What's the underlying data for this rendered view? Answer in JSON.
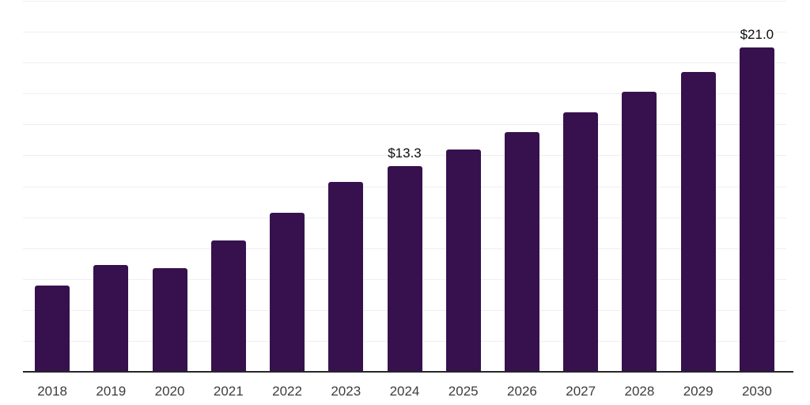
{
  "chart_data": {
    "type": "bar",
    "title": "",
    "xlabel": "",
    "ylabel": "",
    "categories": [
      "2018",
      "2019",
      "2020",
      "2021",
      "2022",
      "2023",
      "2024",
      "2025",
      "2026",
      "2027",
      "2028",
      "2029",
      "2030"
    ],
    "values": [
      5.6,
      6.9,
      6.7,
      8.5,
      10.3,
      12.3,
      13.3,
      14.4,
      15.5,
      16.8,
      18.1,
      19.4,
      21.0
    ],
    "annotations": [
      {
        "category": "2024",
        "text": "$13.3"
      },
      {
        "category": "2030",
        "text": "$21.0"
      }
    ],
    "ylim": [
      0,
      24
    ],
    "gridline_step": 2,
    "grid": true,
    "legend": false,
    "y_axis_labels_visible": false,
    "value_prefix": "$",
    "bar_color": "#36114E",
    "grid_color": "#efefef",
    "axis_color": "#26262b",
    "x_tick_color": "#3d3d3d",
    "data_label_color": "#0d0d0d"
  }
}
